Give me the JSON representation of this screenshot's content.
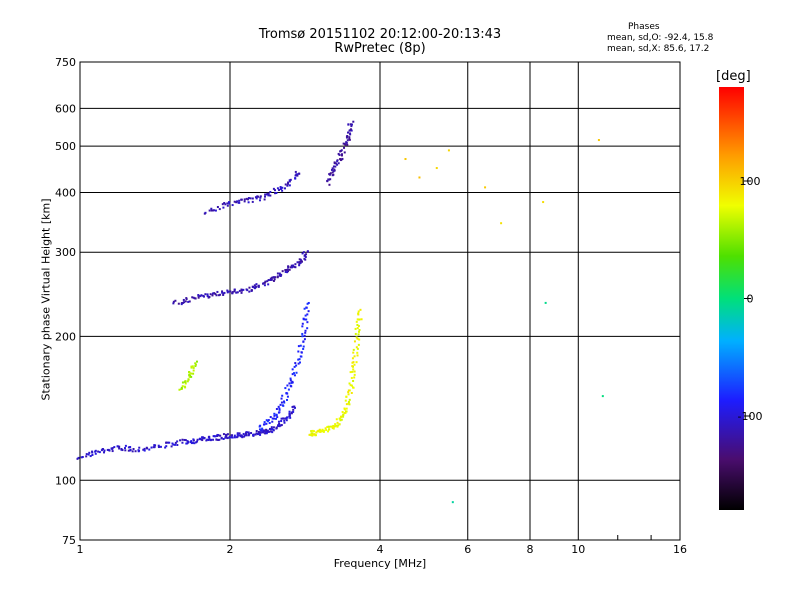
{
  "header": {
    "title_line1": "Tromsø 20151102 20:12:00-20:13:43",
    "title_line2": "RwPretec (8p)"
  },
  "stats": {
    "heading": "Phases",
    "line_o": "mean, sd,O: -92.4, 15.8",
    "line_x": "mean, sd,X:  85.6, 17.2"
  },
  "colorbar": {
    "unit": "[deg]",
    "ticks": [
      "100",
      "0",
      "-100"
    ],
    "range": [
      -180,
      180
    ]
  },
  "chart_data": {
    "type": "scatter",
    "title": "Tromsø 20151102 20:12:00-20:13:43",
    "subtitle": "RwPretec (8p)",
    "xlabel": "Frequency [MHz]",
    "ylabel": "Stationary phase Virtual Height [km]",
    "x_scale": "log2",
    "y_scale": "log",
    "xlim": [
      1,
      16
    ],
    "ylim": [
      75,
      750
    ],
    "x_ticks": [
      "1",
      "2",
      "4",
      "6",
      "8",
      "10",
      "16"
    ],
    "y_ticks": [
      "75",
      "100",
      "200",
      "300",
      "400",
      "500",
      "600",
      "750"
    ],
    "grid": true,
    "color_axis": "phase [deg]",
    "traces": [
      {
        "x": [
          1.0,
          1.1,
          1.2,
          1.3,
          1.45,
          1.6,
          1.7,
          1.8,
          1.9,
          2.0,
          2.1,
          2.2,
          2.3,
          2.4,
          2.5,
          2.6,
          2.7
        ],
        "y": [
          112,
          115,
          117,
          116,
          118,
          120,
          121,
          122,
          123,
          124,
          124,
          125,
          126,
          127,
          130,
          135,
          142
        ],
        "phase": -105
      },
      {
        "x": [
          2.3,
          2.45,
          2.55,
          2.65,
          2.75,
          2.82,
          2.86
        ],
        "y": [
          128,
          135,
          145,
          160,
          180,
          205,
          235
        ],
        "phase": -85
      },
      {
        "x": [
          2.9,
          3.0,
          3.15,
          3.3,
          3.4,
          3.5,
          3.55,
          3.6,
          3.65
        ],
        "y": [
          125,
          126,
          128,
          132,
          140,
          155,
          175,
          200,
          225
        ],
        "phase": 80
      },
      {
        "x": [
          1.55,
          1.7,
          1.85,
          2.0,
          2.15,
          2.3,
          2.45,
          2.6,
          2.75,
          2.85
        ],
        "y": [
          235,
          240,
          245,
          248,
          250,
          255,
          265,
          275,
          285,
          300
        ],
        "phase": -115
      },
      {
        "x": [
          1.8,
          2.0,
          2.2,
          2.4,
          2.6,
          2.75
        ],
        "y": [
          365,
          380,
          385,
          395,
          415,
          440
        ],
        "phase": -110
      },
      {
        "x": [
          3.15,
          3.25,
          3.35,
          3.45,
          3.5
        ],
        "y": [
          420,
          450,
          480,
          520,
          560
        ],
        "phase": -120
      },
      {
        "x": [
          1.6,
          1.65,
          1.7
        ],
        "y": [
          155,
          165,
          175
        ],
        "phase": 60
      },
      {
        "x": [
          4.5,
          4.8,
          5.2,
          5.5,
          6.5,
          7.0,
          8.5,
          11.0
        ],
        "y": [
          470,
          430,
          450,
          490,
          410,
          345,
          382,
          515
        ],
        "phase": 100
      },
      {
        "x": [
          5.6,
          8.6,
          11.2
        ],
        "y": [
          90,
          235,
          150
        ],
        "phase": 0
      }
    ]
  }
}
